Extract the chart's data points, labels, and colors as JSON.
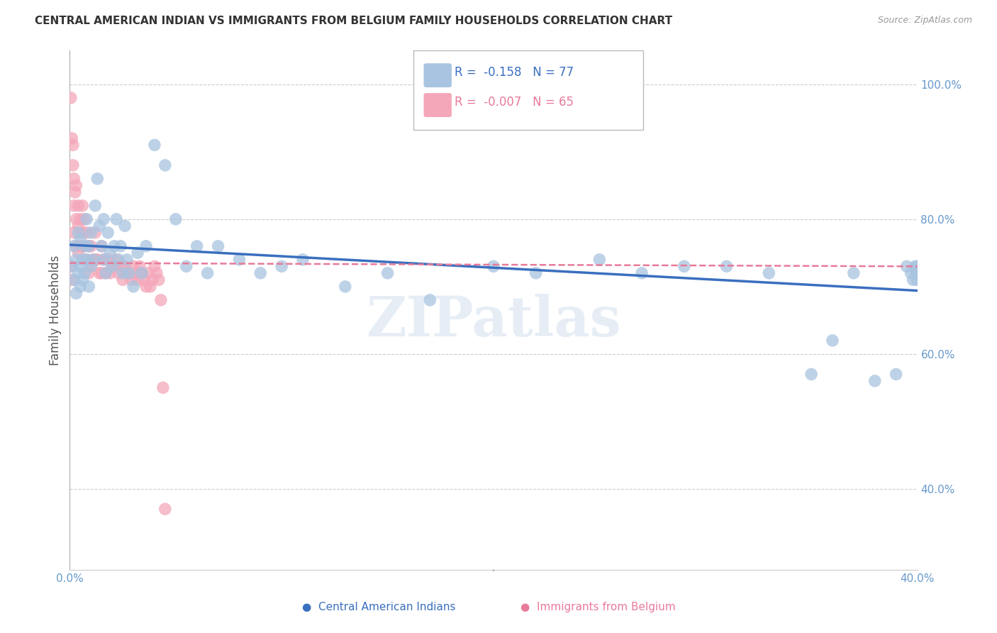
{
  "title": "CENTRAL AMERICAN INDIAN VS IMMIGRANTS FROM BELGIUM FAMILY HOUSEHOLDS CORRELATION CHART",
  "source": "Source: ZipAtlas.com",
  "ylabel": "Family Households",
  "xlim": [
    0.0,
    0.4
  ],
  "ylim": [
    0.28,
    1.05
  ],
  "xticks": [
    0.0,
    0.05,
    0.1,
    0.15,
    0.2,
    0.25,
    0.3,
    0.35,
    0.4
  ],
  "xticklabels": [
    "0.0%",
    "",
    "",
    "",
    "",
    "",
    "",
    "",
    "40.0%"
  ],
  "yticks": [
    0.4,
    0.6,
    0.8,
    1.0
  ],
  "yticklabels": [
    "40.0%",
    "60.0%",
    "80.0%",
    "100.0%"
  ],
  "blue_color": "#a8c4e0",
  "pink_color": "#f4a7b9",
  "blue_line_color": "#3a6fbf",
  "pink_line_color": "#e87a9a",
  "grid_color": "#cccccc",
  "axis_color": "#6699cc",
  "watermark": "ZIPatlas",
  "legend_R_blue": "-0.158",
  "legend_N_blue": "77",
  "legend_R_pink": "-0.007",
  "legend_N_pink": "65",
  "blue_scatter_x": [
    0.001,
    0.002,
    0.002,
    0.003,
    0.003,
    0.004,
    0.004,
    0.005,
    0.005,
    0.005,
    0.006,
    0.006,
    0.007,
    0.007,
    0.008,
    0.008,
    0.009,
    0.009,
    0.01,
    0.01,
    0.011,
    0.012,
    0.013,
    0.014,
    0.015,
    0.016,
    0.016,
    0.017,
    0.018,
    0.019,
    0.02,
    0.021,
    0.022,
    0.023,
    0.024,
    0.025,
    0.026,
    0.027,
    0.028,
    0.03,
    0.032,
    0.034,
    0.036,
    0.04,
    0.045,
    0.05,
    0.055,
    0.06,
    0.065,
    0.07,
    0.08,
    0.09,
    0.1,
    0.11,
    0.13,
    0.15,
    0.17,
    0.2,
    0.22,
    0.25,
    0.27,
    0.29,
    0.31,
    0.33,
    0.35,
    0.36,
    0.37,
    0.38,
    0.39,
    0.395,
    0.397,
    0.398,
    0.399,
    0.3995,
    0.3998,
    0.3999,
    0.4
  ],
  "blue_scatter_y": [
    0.73,
    0.76,
    0.71,
    0.74,
    0.69,
    0.78,
    0.72,
    0.73,
    0.77,
    0.7,
    0.74,
    0.71,
    0.76,
    0.72,
    0.8,
    0.74,
    0.76,
    0.7,
    0.78,
    0.73,
    0.74,
    0.82,
    0.86,
    0.79,
    0.76,
    0.8,
    0.74,
    0.72,
    0.78,
    0.75,
    0.73,
    0.76,
    0.8,
    0.74,
    0.76,
    0.72,
    0.79,
    0.74,
    0.72,
    0.7,
    0.75,
    0.72,
    0.76,
    0.91,
    0.88,
    0.8,
    0.73,
    0.76,
    0.72,
    0.76,
    0.74,
    0.72,
    0.73,
    0.74,
    0.7,
    0.72,
    0.68,
    0.73,
    0.72,
    0.74,
    0.72,
    0.73,
    0.73,
    0.72,
    0.57,
    0.62,
    0.72,
    0.56,
    0.57,
    0.73,
    0.72,
    0.71,
    0.73,
    0.72,
    0.71,
    0.72,
    0.73
  ],
  "pink_scatter_x": [
    0.0005,
    0.0005,
    0.001,
    0.001,
    0.0015,
    0.0015,
    0.002,
    0.002,
    0.002,
    0.0025,
    0.003,
    0.003,
    0.003,
    0.004,
    0.004,
    0.004,
    0.005,
    0.005,
    0.006,
    0.006,
    0.007,
    0.007,
    0.008,
    0.008,
    0.009,
    0.009,
    0.01,
    0.01,
    0.011,
    0.012,
    0.012,
    0.013,
    0.014,
    0.015,
    0.015,
    0.016,
    0.017,
    0.018,
    0.019,
    0.02,
    0.021,
    0.022,
    0.023,
    0.024,
    0.025,
    0.026,
    0.027,
    0.028,
    0.029,
    0.03,
    0.031,
    0.032,
    0.033,
    0.034,
    0.035,
    0.036,
    0.037,
    0.038,
    0.039,
    0.04,
    0.041,
    0.042,
    0.043,
    0.044,
    0.045
  ],
  "pink_scatter_y": [
    0.98,
    0.73,
    0.92,
    0.71,
    0.91,
    0.88,
    0.86,
    0.82,
    0.78,
    0.84,
    0.85,
    0.8,
    0.76,
    0.82,
    0.79,
    0.75,
    0.8,
    0.76,
    0.82,
    0.78,
    0.8,
    0.76,
    0.78,
    0.74,
    0.76,
    0.72,
    0.76,
    0.73,
    0.74,
    0.78,
    0.74,
    0.74,
    0.72,
    0.76,
    0.72,
    0.74,
    0.72,
    0.74,
    0.72,
    0.73,
    0.73,
    0.74,
    0.72,
    0.73,
    0.71,
    0.73,
    0.72,
    0.72,
    0.71,
    0.73,
    0.72,
    0.71,
    0.73,
    0.72,
    0.71,
    0.7,
    0.72,
    0.7,
    0.71,
    0.73,
    0.72,
    0.71,
    0.68,
    0.55,
    0.37
  ],
  "blue_trend": [
    0.762,
    0.694
  ],
  "pink_trend": [
    0.735,
    0.73
  ]
}
